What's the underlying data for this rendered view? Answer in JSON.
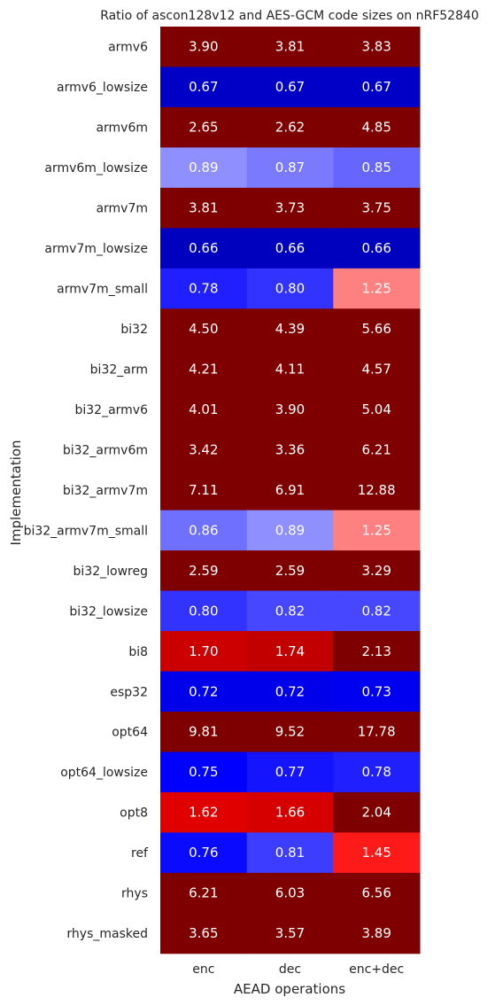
{
  "chart_data": {
    "type": "heatmap",
    "title": "Ratio of ascon128v12 and AES-GCM code sizes on nRF52840",
    "xlabel": "AEAD operations",
    "ylabel": "Implementation",
    "columns": [
      "enc",
      "dec",
      "enc+dec"
    ],
    "rows": [
      "armv6",
      "armv6_lowsize",
      "armv6m",
      "armv6m_lowsize",
      "armv7m",
      "armv7m_lowsize",
      "armv7m_small",
      "bi32",
      "bi32_arm",
      "bi32_armv6",
      "bi32_armv6m",
      "bi32_armv7m",
      "bi32_armv7m_small",
      "bi32_lowreg",
      "bi32_lowsize",
      "bi8",
      "esp32",
      "opt64",
      "opt64_lowsize",
      "opt8",
      "ref",
      "rhys",
      "rhys_masked"
    ],
    "values": [
      [
        3.9,
        3.81,
        3.83
      ],
      [
        0.67,
        0.67,
        0.67
      ],
      [
        2.65,
        2.62,
        4.85
      ],
      [
        0.89,
        0.87,
        0.85
      ],
      [
        3.81,
        3.73,
        3.75
      ],
      [
        0.66,
        0.66,
        0.66
      ],
      [
        0.78,
        0.8,
        1.25
      ],
      [
        4.5,
        4.39,
        5.66
      ],
      [
        4.21,
        4.11,
        4.57
      ],
      [
        4.01,
        3.9,
        5.04
      ],
      [
        3.42,
        3.36,
        6.21
      ],
      [
        7.11,
        6.91,
        12.88
      ],
      [
        0.86,
        0.89,
        1.25
      ],
      [
        2.59,
        2.59,
        3.29
      ],
      [
        0.8,
        0.82,
        0.82
      ],
      [
        1.7,
        1.74,
        2.13
      ],
      [
        0.72,
        0.72,
        0.73
      ],
      [
        9.81,
        9.52,
        17.78
      ],
      [
        0.75,
        0.77,
        0.78
      ],
      [
        1.62,
        1.66,
        2.04
      ],
      [
        0.76,
        0.81,
        1.45
      ],
      [
        6.21,
        6.03,
        6.56
      ],
      [
        3.65,
        3.57,
        3.89
      ]
    ],
    "colormap": "seismic",
    "colorscale": {
      "vmin": 0.5,
      "center": 1.0,
      "vmax": 2.0
    },
    "colorbar": false,
    "grid": false
  }
}
